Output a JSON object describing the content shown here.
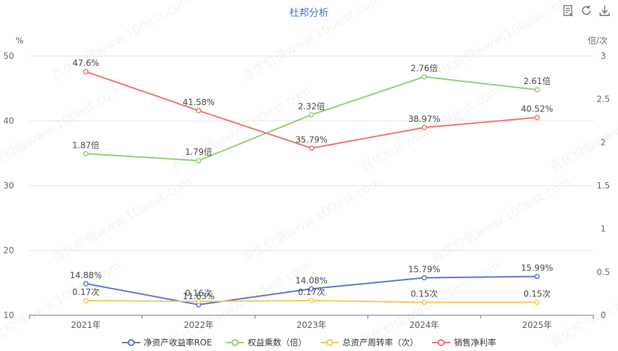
{
  "title": "杜邦分析",
  "toolbar": {
    "icons": [
      "data-view-icon",
      "refresh-icon",
      "download-icon"
    ]
  },
  "watermark": "百优价值www.100est.com",
  "chart_data": {
    "type": "line",
    "categories": [
      "2021年",
      "2022年",
      "2023年",
      "2024年",
      "2025年"
    ],
    "left_axis": {
      "label": "%",
      "ticks": [
        "10",
        "20",
        "30",
        "40",
        "50"
      ],
      "ylim": [
        10,
        50
      ]
    },
    "right_axis": {
      "label": "倍/次",
      "ticks": [
        "0",
        "0.5",
        "1",
        "1.5",
        "2",
        "2.5",
        "3"
      ],
      "ylim": [
        0,
        3
      ]
    },
    "grid": true,
    "legend_position": "bottom",
    "series": [
      {
        "name": "净资产收益率ROE",
        "axis": "left",
        "color": "#5b70c8",
        "values": [
          14.88,
          11.63,
          14.08,
          15.79,
          15.99
        ],
        "labels": [
          "14.88%",
          "11.63%",
          "14.08%",
          "15.79%",
          "15.99%"
        ]
      },
      {
        "name": "权益乘数（倍）",
        "axis": "right",
        "color": "#91cc75",
        "values": [
          1.87,
          1.79,
          2.32,
          2.76,
          2.61
        ],
        "labels": [
          "1.87倍",
          "1.79倍",
          "2.32倍",
          "2.76倍",
          "2.61倍"
        ]
      },
      {
        "name": "总资产周转率（次）",
        "axis": "right",
        "color": "#f5c65a",
        "values": [
          0.17,
          0.16,
          0.17,
          0.15,
          0.15
        ],
        "labels": [
          "0.17次",
          "0.16次",
          "0.17次",
          "0.15次",
          "0.15次"
        ]
      },
      {
        "name": "销售净利率",
        "axis": "left",
        "color": "#e8736c",
        "values": [
          47.6,
          41.58,
          35.79,
          38.97,
          40.52
        ],
        "labels": [
          "47.6%",
          "41.58%",
          "35.79%",
          "38.97%",
          "40.52%"
        ]
      }
    ]
  }
}
